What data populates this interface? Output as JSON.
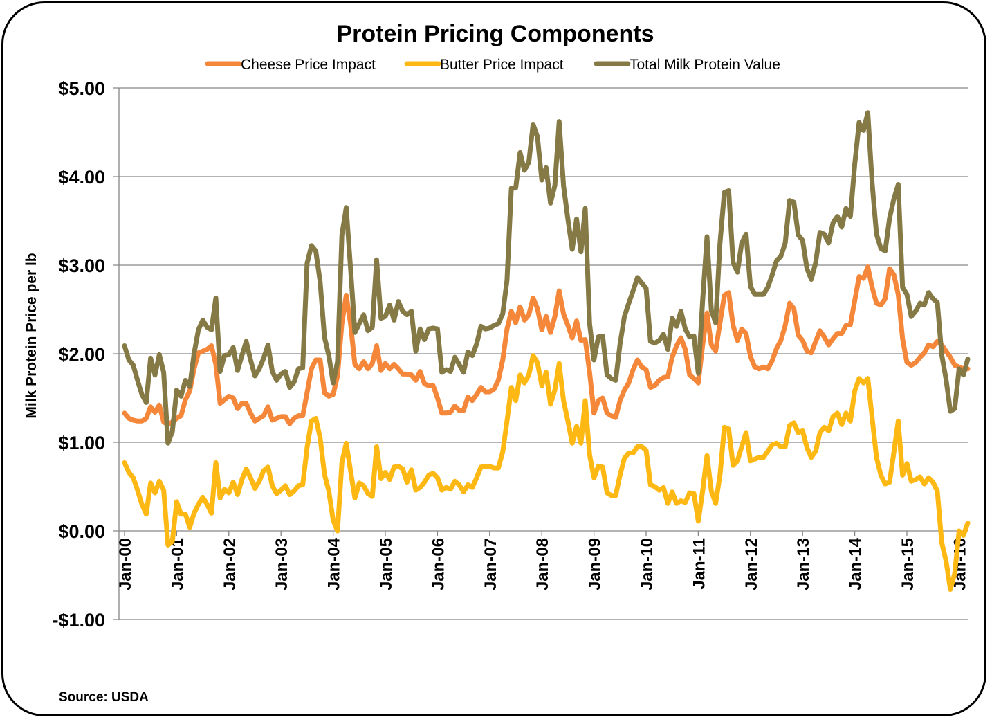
{
  "chart_data": {
    "type": "line",
    "title": "Protein Pricing Components",
    "ylabel": "Milk Protein Price per lb",
    "xlabel": "",
    "source": "Source: USDA",
    "ylim": [
      -1,
      5
    ],
    "yticks": [
      5,
      4,
      3,
      2,
      1,
      0,
      -1
    ],
    "ytick_labels": [
      "$5.00",
      "$4.00",
      "$3.00",
      "$2.00",
      "$1.00",
      "$0.00",
      "-$1.00"
    ],
    "xtick_labels": [
      "Jan-00",
      "Jan-01",
      "Jan-02",
      "Jan-03",
      "Jan-04",
      "Jan-05",
      "Jan-06",
      "Jan-07",
      "Jan-08",
      "Jan-09",
      "Jan-10",
      "Jan-11",
      "Jan-12",
      "Jan-13",
      "Jan-14",
      "Jan-15",
      "Jan-16"
    ],
    "x_start": "Jan-00",
    "x_frequency": "monthly",
    "grid": true,
    "legend_position": "top",
    "series": [
      {
        "name": "Cheese Price Impact",
        "color": "#F4873A",
        "values": [
          1.33,
          1.27,
          1.25,
          1.24,
          1.24,
          1.27,
          1.4,
          1.34,
          1.42,
          1.23,
          1.2,
          1.23,
          1.27,
          1.3,
          1.48,
          1.58,
          1.83,
          2.01,
          2.03,
          2.05,
          2.09,
          1.88,
          1.44,
          1.48,
          1.52,
          1.5,
          1.38,
          1.44,
          1.44,
          1.33,
          1.24,
          1.27,
          1.3,
          1.4,
          1.25,
          1.27,
          1.29,
          1.29,
          1.21,
          1.27,
          1.3,
          1.3,
          1.56,
          1.83,
          1.93,
          1.93,
          1.56,
          1.52,
          1.54,
          1.75,
          2.34,
          2.66,
          2.34,
          1.88,
          1.83,
          1.91,
          1.83,
          1.89,
          2.09,
          1.81,
          1.89,
          1.83,
          1.88,
          1.83,
          1.77,
          1.77,
          1.76,
          1.7,
          1.8,
          1.66,
          1.64,
          1.64,
          1.5,
          1.33,
          1.33,
          1.34,
          1.41,
          1.36,
          1.36,
          1.51,
          1.47,
          1.54,
          1.62,
          1.57,
          1.57,
          1.6,
          1.7,
          1.93,
          2.28,
          2.48,
          2.35,
          2.53,
          2.38,
          2.44,
          2.63,
          2.51,
          2.27,
          2.42,
          2.24,
          2.42,
          2.71,
          2.45,
          2.32,
          2.18,
          2.37,
          2.15,
          2.16,
          1.79,
          1.33,
          1.47,
          1.5,
          1.33,
          1.3,
          1.28,
          1.47,
          1.59,
          1.67,
          1.82,
          1.93,
          1.85,
          1.82,
          1.62,
          1.64,
          1.7,
          1.73,
          1.74,
          1.96,
          2.09,
          2.18,
          2.05,
          1.76,
          1.72,
          1.67,
          2.1,
          2.46,
          2.1,
          2.03,
          2.35,
          2.66,
          2.69,
          2.32,
          2.15,
          2.28,
          2.23,
          1.97,
          1.85,
          1.83,
          1.85,
          1.83,
          1.92,
          2.06,
          2.15,
          2.32,
          2.57,
          2.51,
          2.21,
          2.15,
          2.03,
          2.01,
          2.14,
          2.26,
          2.19,
          2.1,
          2.17,
          2.23,
          2.23,
          2.32,
          2.33,
          2.6,
          2.87,
          2.85,
          2.98,
          2.75,
          2.57,
          2.55,
          2.62,
          2.96,
          2.89,
          2.67,
          2.17,
          1.9,
          1.87,
          1.9,
          1.96,
          2.01,
          2.1,
          2.08,
          2.14,
          2.1,
          2.03,
          1.96,
          1.87,
          1.85,
          1.83,
          1.83
        ]
      },
      {
        "name": "Butter Price Impact",
        "color": "#FDB813",
        "values": [
          0.77,
          0.66,
          0.6,
          0.46,
          0.3,
          0.19,
          0.54,
          0.43,
          0.56,
          0.46,
          -0.16,
          -0.12,
          0.33,
          0.19,
          0.19,
          0.04,
          0.2,
          0.3,
          0.38,
          0.3,
          0.2,
          0.77,
          0.37,
          0.47,
          0.43,
          0.55,
          0.41,
          0.58,
          0.7,
          0.6,
          0.48,
          0.56,
          0.68,
          0.72,
          0.51,
          0.42,
          0.46,
          0.51,
          0.41,
          0.45,
          0.51,
          0.52,
          0.94,
          1.24,
          1.27,
          1.05,
          0.64,
          0.45,
          0.12,
          0.0,
          0.77,
          0.99,
          0.68,
          0.37,
          0.54,
          0.51,
          0.42,
          0.39,
          0.95,
          0.59,
          0.66,
          0.58,
          0.72,
          0.73,
          0.7,
          0.55,
          0.69,
          0.46,
          0.49,
          0.55,
          0.63,
          0.65,
          0.6,
          0.46,
          0.49,
          0.47,
          0.56,
          0.52,
          0.44,
          0.52,
          0.49,
          0.6,
          0.72,
          0.73,
          0.73,
          0.71,
          0.71,
          0.89,
          1.24,
          1.62,
          1.47,
          1.76,
          1.67,
          1.76,
          1.98,
          1.9,
          1.64,
          1.79,
          1.43,
          1.59,
          1.89,
          1.47,
          1.24,
          0.99,
          1.18,
          0.99,
          1.47,
          0.86,
          0.6,
          0.73,
          0.72,
          0.43,
          0.4,
          0.4,
          0.63,
          0.82,
          0.88,
          0.88,
          0.95,
          0.95,
          0.91,
          0.52,
          0.5,
          0.46,
          0.49,
          0.31,
          0.44,
          0.31,
          0.34,
          0.32,
          0.43,
          0.42,
          0.11,
          0.45,
          0.85,
          0.45,
          0.31,
          0.63,
          1.17,
          1.15,
          0.74,
          0.79,
          0.95,
          1.11,
          0.79,
          0.81,
          0.83,
          0.83,
          0.9,
          0.97,
          0.99,
          0.95,
          0.95,
          1.19,
          1.22,
          1.11,
          1.13,
          0.94,
          0.83,
          0.9,
          1.11,
          1.17,
          1.13,
          1.29,
          1.33,
          1.2,
          1.33,
          1.24,
          1.58,
          1.72,
          1.67,
          1.72,
          1.28,
          0.83,
          0.63,
          0.53,
          0.55,
          0.89,
          1.24,
          0.63,
          0.76,
          0.56,
          0.58,
          0.61,
          0.53,
          0.6,
          0.55,
          0.45,
          -0.13,
          -0.34,
          -0.66,
          -0.48,
          0.0,
          -0.05,
          0.09
        ]
      },
      {
        "name": "Total Milk Protein Value",
        "color": "#857A45",
        "values": [
          2.09,
          1.93,
          1.87,
          1.7,
          1.54,
          1.45,
          1.95,
          1.76,
          1.99,
          1.79,
          0.99,
          1.12,
          1.59,
          1.52,
          1.7,
          1.63,
          2.0,
          2.27,
          2.38,
          2.3,
          2.27,
          2.63,
          1.8,
          1.98,
          1.99,
          2.07,
          1.81,
          1.98,
          2.14,
          1.93,
          1.75,
          1.83,
          1.95,
          2.1,
          1.8,
          1.7,
          1.77,
          1.8,
          1.62,
          1.68,
          1.83,
          1.84,
          3.02,
          3.22,
          3.16,
          2.81,
          2.19,
          1.98,
          1.67,
          1.91,
          3.34,
          3.65,
          2.97,
          2.24,
          2.34,
          2.44,
          2.26,
          2.3,
          3.06,
          2.4,
          2.42,
          2.55,
          2.38,
          2.59,
          2.48,
          2.44,
          2.48,
          2.03,
          2.28,
          2.16,
          2.28,
          2.29,
          2.28,
          1.79,
          1.82,
          1.8,
          1.96,
          1.88,
          1.79,
          2.02,
          1.98,
          2.11,
          2.31,
          2.28,
          2.29,
          2.32,
          2.34,
          2.45,
          2.83,
          3.87,
          3.87,
          4.27,
          4.07,
          4.16,
          4.59,
          4.45,
          3.96,
          4.1,
          3.7,
          3.9,
          4.62,
          3.9,
          3.52,
          3.18,
          3.52,
          3.15,
          3.64,
          2.34,
          1.93,
          2.19,
          2.2,
          1.76,
          1.72,
          1.7,
          2.11,
          2.42,
          2.57,
          2.71,
          2.86,
          2.8,
          2.74,
          2.14,
          2.12,
          2.15,
          2.22,
          2.05,
          2.4,
          2.31,
          2.48,
          2.28,
          2.19,
          2.2,
          1.78,
          2.6,
          3.32,
          2.49,
          2.35,
          3.25,
          3.82,
          3.84,
          3.03,
          2.92,
          3.25,
          3.35,
          2.76,
          2.67,
          2.67,
          2.67,
          2.75,
          2.89,
          3.05,
          3.1,
          3.25,
          3.73,
          3.71,
          3.34,
          3.28,
          2.96,
          2.84,
          3.03,
          3.37,
          3.35,
          3.25,
          3.48,
          3.55,
          3.43,
          3.64,
          3.55,
          4.14,
          4.61,
          4.52,
          4.72,
          3.93,
          3.35,
          3.19,
          3.16,
          3.53,
          3.75,
          3.91,
          2.75,
          2.67,
          2.42,
          2.48,
          2.57,
          2.55,
          2.69,
          2.62,
          2.58,
          1.99,
          1.71,
          1.35,
          1.38,
          1.83,
          1.76,
          1.94
        ]
      }
    ]
  }
}
